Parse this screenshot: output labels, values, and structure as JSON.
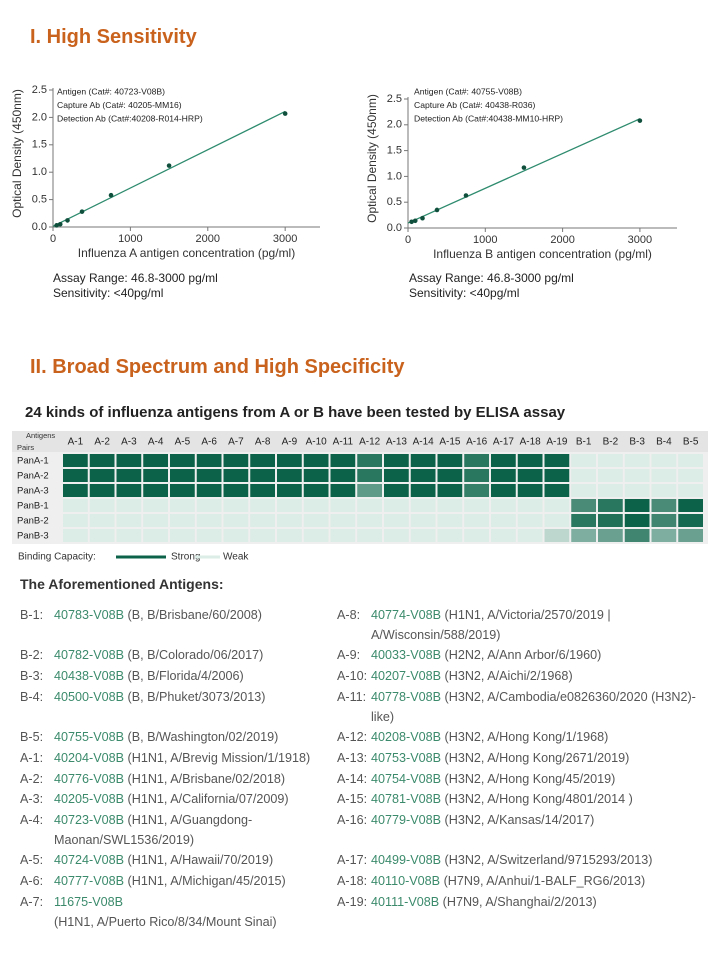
{
  "section1": {
    "title": "I. High Sensitivity"
  },
  "chart_data": [
    {
      "type": "scatter",
      "x": [
        46.8,
        93.75,
        187.5,
        375,
        750,
        1500,
        3000
      ],
      "series": [
        {
          "color": "#0f4f3c",
          "line_color": "#2e8b6e",
          "trendline": "linear",
          "values": [
            0.03,
            0.05,
            0.12,
            0.28,
            0.58,
            1.12,
            2.07
          ]
        }
      ],
      "xlim": [
        0,
        3450
      ],
      "ylim": [
        0,
        2.5
      ],
      "xticks": [
        0,
        1000,
        2000,
        3000
      ],
      "yticks": [
        {
          "value": 0,
          "label": "0.0"
        },
        0.5,
        {
          "value": 1,
          "label": "1.0"
        },
        1.5,
        {
          "value": 2,
          "label": "2.0"
        },
        2.5
      ],
      "xlabel": "Influenza A antigen concentration (pg/ml)",
      "ylabel": "Optical Density (450nm)",
      "annotations": [
        "Antigen (Cat#: 40723-V08B)",
        "Capture Ab (Cat#: 40205-MM16)",
        "Detection Ab (Cat#:40208-R014-HRP)"
      ],
      "notes": [
        "Assay Range: 46.8-3000 pg/ml",
        "Sensitivity: <40pg/ml"
      ]
    },
    {
      "type": "scatter",
      "x": [
        46.8,
        93.75,
        187.5,
        375,
        750,
        1500,
        3000
      ],
      "series": [
        {
          "color": "#0f4f3c",
          "line_color": "#2e8b6e",
          "trendline": "linear",
          "values": [
            0.12,
            0.14,
            0.19,
            0.35,
            0.63,
            1.17,
            2.08
          ]
        }
      ],
      "xlim": [
        0,
        3480
      ],
      "ylim": [
        0,
        2.5
      ],
      "xticks": [
        0,
        1000,
        2000,
        3000
      ],
      "yticks": [
        {
          "value": 0,
          "label": "0.0"
        },
        0.5,
        {
          "value": 1,
          "label": "1.0"
        },
        1.5,
        {
          "value": 2,
          "label": "2.0"
        },
        2.5
      ],
      "xlabel": "Influenza B antigen concentration (pg/ml)",
      "ylabel": "Optical Density (450nm)",
      "annotations": [
        "Antigen (Cat#: 40755-V08B)",
        "Capture Ab (Cat#: 40438-R036)",
        "Detection Ab (Cat#:40438-MM10-HRP)"
      ],
      "notes": [
        "Assay Range: 46.8-3000 pg/ml",
        "Sensitivity: <40pg/ml"
      ]
    }
  ],
  "section2": {
    "title": "II. Broad Spectrum and High Specificity",
    "subtitle": "24 kinds of influenza antigens from A or B have been tested by ELISA assay",
    "heatmap": {
      "corner_top": "Antigens",
      "corner_bottom": "Pairs",
      "columns": [
        "A-1",
        "A-2",
        "A-3",
        "A-4",
        "A-5",
        "A-6",
        "A-7",
        "A-8",
        "A-9",
        "A-10",
        "A-11",
        "A-12",
        "A-13",
        "A-14",
        "A-15",
        "A-16",
        "A-17",
        "A-18",
        "A-19",
        "B-1",
        "B-2",
        "B-3",
        "B-4",
        "B-5"
      ],
      "rows": [
        "PanA-1",
        "PanA-2",
        "PanA-3",
        "PanB-1",
        "PanB-2",
        "PanB-3"
      ],
      "weak_color": "#dcece6",
      "strong_color": "#0b6248",
      "values": [
        [
          100,
          100,
          100,
          100,
          100,
          100,
          100,
          100,
          100,
          100,
          100,
          85,
          100,
          100,
          100,
          85,
          100,
          100,
          100,
          0,
          0,
          0,
          0,
          0
        ],
        [
          100,
          100,
          100,
          100,
          100,
          100,
          100,
          100,
          100,
          100,
          100,
          85,
          100,
          100,
          100,
          85,
          100,
          100,
          100,
          0,
          0,
          0,
          0,
          0
        ],
        [
          100,
          100,
          100,
          100,
          100,
          100,
          100,
          100,
          100,
          100,
          100,
          60,
          100,
          100,
          100,
          80,
          100,
          100,
          100,
          0,
          0,
          0,
          0,
          0
        ],
        [
          0,
          0,
          0,
          0,
          0,
          0,
          0,
          0,
          0,
          0,
          0,
          0,
          0,
          0,
          0,
          0,
          0,
          0,
          0,
          70,
          85,
          100,
          70,
          100
        ],
        [
          0,
          0,
          0,
          0,
          0,
          0,
          0,
          0,
          0,
          0,
          0,
          0,
          0,
          0,
          0,
          0,
          0,
          0,
          0,
          85,
          90,
          100,
          75,
          95
        ],
        [
          0,
          0,
          0,
          0,
          0,
          0,
          0,
          0,
          0,
          0,
          0,
          0,
          0,
          0,
          0,
          0,
          0,
          0,
          15,
          45,
          55,
          75,
          45,
          55
        ]
      ]
    },
    "legend": {
      "label": "Binding Capacity:",
      "strong": "Strong",
      "weak": "Weak"
    },
    "antigens": {
      "title": "The Aforementioned Antigens:",
      "left": [
        {
          "code": "B-1:",
          "cat": "40783-V08B",
          "desc": "(B, B/Brisbane/60/2008)"
        },
        {
          "code": "B-2:",
          "cat": "40782-V08B",
          "desc": "(B, B/Colorado/06/2017)"
        },
        {
          "code": "B-3:",
          "cat": "40438-V08B",
          "desc": "(B, B/Florida/4/2006)"
        },
        {
          "code": "B-4:",
          "cat": "40500-V08B",
          "desc": "(B, B/Phuket/3073/2013)"
        },
        {
          "code": "B-5:",
          "cat": "40755-V08B",
          "desc": "(B, B/Washington/02/2019)"
        },
        {
          "code": "A-1:",
          "cat": "40204-V08B",
          "desc": "(H1N1, A/Brevig Mission/1/1918)"
        },
        {
          "code": "A-2:",
          "cat": "40776-V08B",
          "desc": "(H1N1, A/Brisbane/02/2018)"
        },
        {
          "code": "A-3:",
          "cat": "40205-V08B",
          "desc": "(H1N1, A/California/07/2009)"
        },
        {
          "code": "A-4:",
          "cat": "40723-V08B",
          "desc": "(H1N1, A/Guangdong-Maonan/SWL1536/2019)"
        },
        {
          "code": "A-5:",
          "cat": "40724-V08B",
          "desc": "(H1N1, A/Hawaii/70/2019)"
        },
        {
          "code": "A-6:",
          "cat": "40777-V08B",
          "desc": "(H1N1, A/Michigan/45/2015)"
        },
        {
          "code": "A-7:",
          "cat": "11675-V08B",
          "desc": "(H1N1, A/Puerto Rico/8/34/Mount Sinai)"
        }
      ],
      "right": [
        {
          "code": "A-8:",
          "cat": "40774-V08B",
          "desc": "(H1N1, A/Victoria/2570/2019 | A/Wisconsin/588/2019)"
        },
        {
          "code": "A-9:",
          "cat": "40033-V08B",
          "desc": "(H2N2, A/Ann Arbor/6/1960)"
        },
        {
          "code": "A-10:",
          "cat": "40207-V08B",
          "desc": "(H3N2, A/Aichi/2/1968)"
        },
        {
          "code": "A-11:",
          "cat": "40778-V08B",
          "desc": "(H3N2, A/Cambodia/e0826360/2020 (H3N2)-like)"
        },
        {
          "code": "A-12:",
          "cat": "40208-V08B",
          "desc": "(H3N2, A/Hong Kong/1/1968)"
        },
        {
          "code": "A-13:",
          "cat": "40753-V08B",
          "desc": "(H3N2, A/Hong Kong/2671/2019)"
        },
        {
          "code": "A-14:",
          "cat": "40754-V08B",
          "desc": "(H3N2, A/Hong Kong/45/2019)"
        },
        {
          "code": "A-15:",
          "cat": "40781-V08B",
          "desc": "(H3N2, A/Hong Kong/4801/2014 )"
        },
        {
          "code": "A-16:",
          "cat": "40779-V08B",
          "desc": "(H3N2, A/Kansas/14/2017)"
        },
        {
          "code": "A-17:",
          "cat": "40499-V08B",
          "desc": "(H3N2, A/Switzerland/9715293/2013)"
        },
        {
          "code": "A-18:",
          "cat": "40110-V08B",
          "desc": "(H7N9, A/Anhui/1-BALF_RG6/2013)"
        },
        {
          "code": "A-19:",
          "cat": "40111-V08B",
          "desc": "(H7N9, A/Shanghai/2/2013)"
        }
      ]
    }
  }
}
